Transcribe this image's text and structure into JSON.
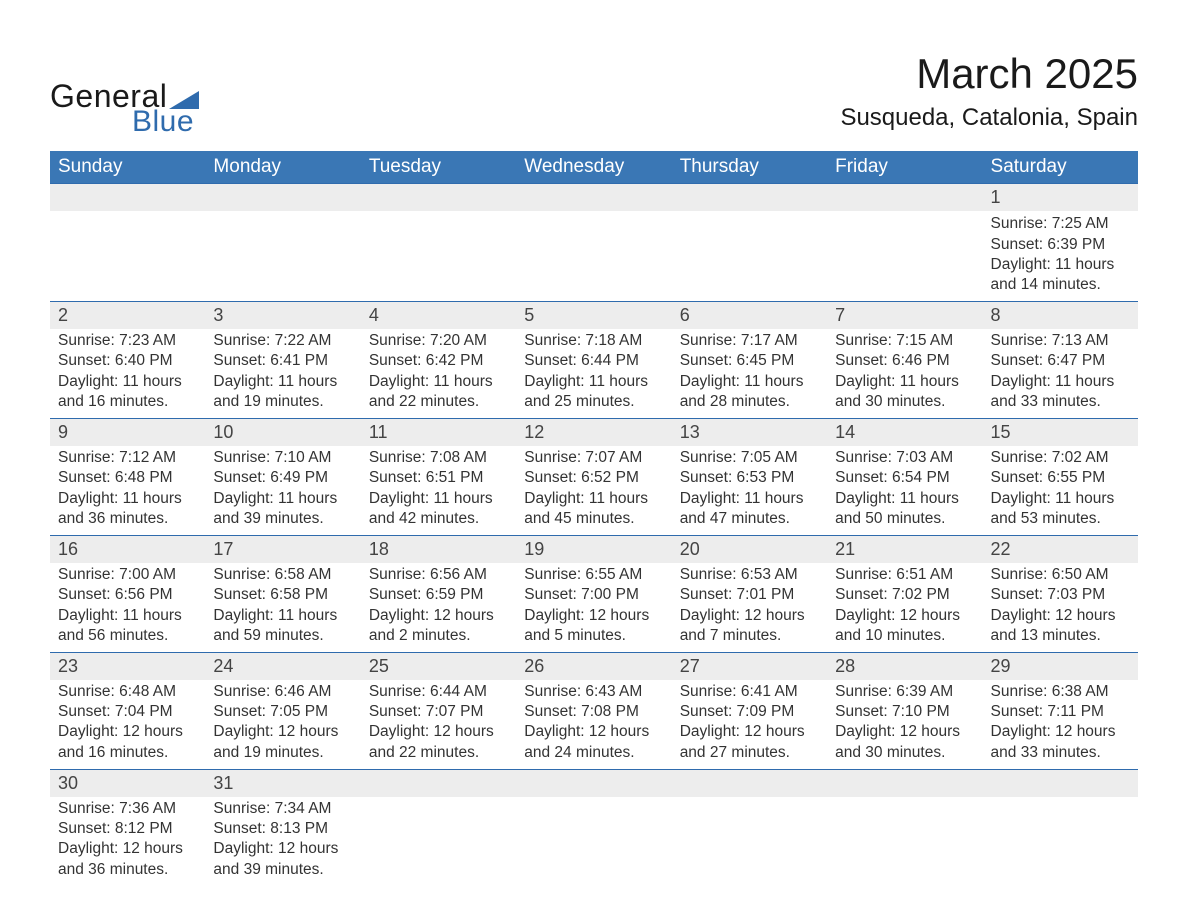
{
  "logo": {
    "general": "General",
    "blue": "Blue"
  },
  "title": "March 2025",
  "subtitle": "Susqueda, Catalonia, Spain",
  "colors": {
    "header_bg": "#3a77b5",
    "header_text": "#ffffff",
    "daynum_bg": "#ededed",
    "border": "#2f6bad",
    "text": "#333333",
    "logo_blue": "#2f6bad"
  },
  "weekdays": [
    "Sunday",
    "Monday",
    "Tuesday",
    "Wednesday",
    "Thursday",
    "Friday",
    "Saturday"
  ],
  "weeks": [
    [
      null,
      null,
      null,
      null,
      null,
      null,
      {
        "n": "1",
        "sunrise": "Sunrise: 7:25 AM",
        "sunset": "Sunset: 6:39 PM",
        "d1": "Daylight: 11 hours",
        "d2": "and 14 minutes."
      }
    ],
    [
      {
        "n": "2",
        "sunrise": "Sunrise: 7:23 AM",
        "sunset": "Sunset: 6:40 PM",
        "d1": "Daylight: 11 hours",
        "d2": "and 16 minutes."
      },
      {
        "n": "3",
        "sunrise": "Sunrise: 7:22 AM",
        "sunset": "Sunset: 6:41 PM",
        "d1": "Daylight: 11 hours",
        "d2": "and 19 minutes."
      },
      {
        "n": "4",
        "sunrise": "Sunrise: 7:20 AM",
        "sunset": "Sunset: 6:42 PM",
        "d1": "Daylight: 11 hours",
        "d2": "and 22 minutes."
      },
      {
        "n": "5",
        "sunrise": "Sunrise: 7:18 AM",
        "sunset": "Sunset: 6:44 PM",
        "d1": "Daylight: 11 hours",
        "d2": "and 25 minutes."
      },
      {
        "n": "6",
        "sunrise": "Sunrise: 7:17 AM",
        "sunset": "Sunset: 6:45 PM",
        "d1": "Daylight: 11 hours",
        "d2": "and 28 minutes."
      },
      {
        "n": "7",
        "sunrise": "Sunrise: 7:15 AM",
        "sunset": "Sunset: 6:46 PM",
        "d1": "Daylight: 11 hours",
        "d2": "and 30 minutes."
      },
      {
        "n": "8",
        "sunrise": "Sunrise: 7:13 AM",
        "sunset": "Sunset: 6:47 PM",
        "d1": "Daylight: 11 hours",
        "d2": "and 33 minutes."
      }
    ],
    [
      {
        "n": "9",
        "sunrise": "Sunrise: 7:12 AM",
        "sunset": "Sunset: 6:48 PM",
        "d1": "Daylight: 11 hours",
        "d2": "and 36 minutes."
      },
      {
        "n": "10",
        "sunrise": "Sunrise: 7:10 AM",
        "sunset": "Sunset: 6:49 PM",
        "d1": "Daylight: 11 hours",
        "d2": "and 39 minutes."
      },
      {
        "n": "11",
        "sunrise": "Sunrise: 7:08 AM",
        "sunset": "Sunset: 6:51 PM",
        "d1": "Daylight: 11 hours",
        "d2": "and 42 minutes."
      },
      {
        "n": "12",
        "sunrise": "Sunrise: 7:07 AM",
        "sunset": "Sunset: 6:52 PM",
        "d1": "Daylight: 11 hours",
        "d2": "and 45 minutes."
      },
      {
        "n": "13",
        "sunrise": "Sunrise: 7:05 AM",
        "sunset": "Sunset: 6:53 PM",
        "d1": "Daylight: 11 hours",
        "d2": "and 47 minutes."
      },
      {
        "n": "14",
        "sunrise": "Sunrise: 7:03 AM",
        "sunset": "Sunset: 6:54 PM",
        "d1": "Daylight: 11 hours",
        "d2": "and 50 minutes."
      },
      {
        "n": "15",
        "sunrise": "Sunrise: 7:02 AM",
        "sunset": "Sunset: 6:55 PM",
        "d1": "Daylight: 11 hours",
        "d2": "and 53 minutes."
      }
    ],
    [
      {
        "n": "16",
        "sunrise": "Sunrise: 7:00 AM",
        "sunset": "Sunset: 6:56 PM",
        "d1": "Daylight: 11 hours",
        "d2": "and 56 minutes."
      },
      {
        "n": "17",
        "sunrise": "Sunrise: 6:58 AM",
        "sunset": "Sunset: 6:58 PM",
        "d1": "Daylight: 11 hours",
        "d2": "and 59 minutes."
      },
      {
        "n": "18",
        "sunrise": "Sunrise: 6:56 AM",
        "sunset": "Sunset: 6:59 PM",
        "d1": "Daylight: 12 hours",
        "d2": "and 2 minutes."
      },
      {
        "n": "19",
        "sunrise": "Sunrise: 6:55 AM",
        "sunset": "Sunset: 7:00 PM",
        "d1": "Daylight: 12 hours",
        "d2": "and 5 minutes."
      },
      {
        "n": "20",
        "sunrise": "Sunrise: 6:53 AM",
        "sunset": "Sunset: 7:01 PM",
        "d1": "Daylight: 12 hours",
        "d2": "and 7 minutes."
      },
      {
        "n": "21",
        "sunrise": "Sunrise: 6:51 AM",
        "sunset": "Sunset: 7:02 PM",
        "d1": "Daylight: 12 hours",
        "d2": "and 10 minutes."
      },
      {
        "n": "22",
        "sunrise": "Sunrise: 6:50 AM",
        "sunset": "Sunset: 7:03 PM",
        "d1": "Daylight: 12 hours",
        "d2": "and 13 minutes."
      }
    ],
    [
      {
        "n": "23",
        "sunrise": "Sunrise: 6:48 AM",
        "sunset": "Sunset: 7:04 PM",
        "d1": "Daylight: 12 hours",
        "d2": "and 16 minutes."
      },
      {
        "n": "24",
        "sunrise": "Sunrise: 6:46 AM",
        "sunset": "Sunset: 7:05 PM",
        "d1": "Daylight: 12 hours",
        "d2": "and 19 minutes."
      },
      {
        "n": "25",
        "sunrise": "Sunrise: 6:44 AM",
        "sunset": "Sunset: 7:07 PM",
        "d1": "Daylight: 12 hours",
        "d2": "and 22 minutes."
      },
      {
        "n": "26",
        "sunrise": "Sunrise: 6:43 AM",
        "sunset": "Sunset: 7:08 PM",
        "d1": "Daylight: 12 hours",
        "d2": "and 24 minutes."
      },
      {
        "n": "27",
        "sunrise": "Sunrise: 6:41 AM",
        "sunset": "Sunset: 7:09 PM",
        "d1": "Daylight: 12 hours",
        "d2": "and 27 minutes."
      },
      {
        "n": "28",
        "sunrise": "Sunrise: 6:39 AM",
        "sunset": "Sunset: 7:10 PM",
        "d1": "Daylight: 12 hours",
        "d2": "and 30 minutes."
      },
      {
        "n": "29",
        "sunrise": "Sunrise: 6:38 AM",
        "sunset": "Sunset: 7:11 PM",
        "d1": "Daylight: 12 hours",
        "d2": "and 33 minutes."
      }
    ],
    [
      {
        "n": "30",
        "sunrise": "Sunrise: 7:36 AM",
        "sunset": "Sunset: 8:12 PM",
        "d1": "Daylight: 12 hours",
        "d2": "and 36 minutes."
      },
      {
        "n": "31",
        "sunrise": "Sunrise: 7:34 AM",
        "sunset": "Sunset: 8:13 PM",
        "d1": "Daylight: 12 hours",
        "d2": "and 39 minutes."
      },
      null,
      null,
      null,
      null,
      null
    ]
  ]
}
